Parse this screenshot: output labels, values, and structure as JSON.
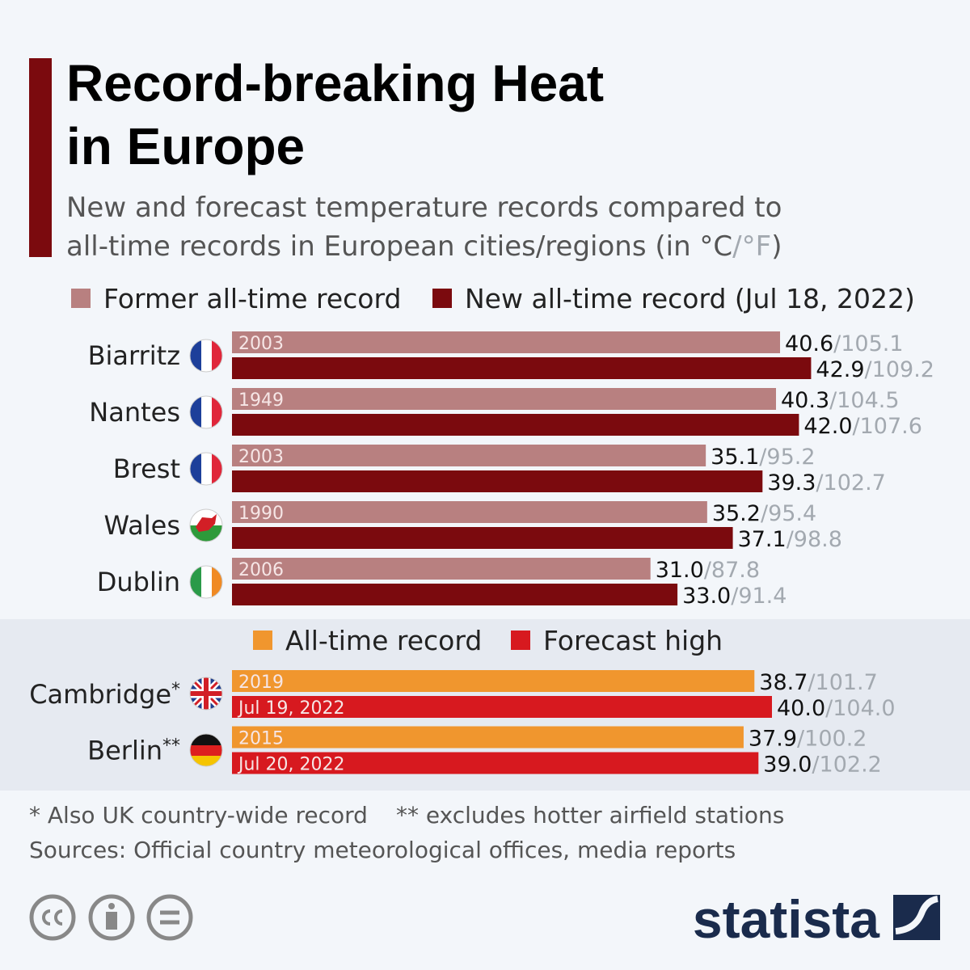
{
  "header": {
    "title_line1": "Record-breaking Heat",
    "title_line2": "in Europe",
    "subtitle_line1": "New and forecast temperature records compared to",
    "subtitle_line2": "all-time records in European cities/regions (in °C",
    "subtitle_f": "/°F",
    "subtitle_end": ")"
  },
  "value_separator": "/",
  "chart_data": [
    {
      "type": "bar",
      "orientation": "horizontal",
      "categories": [
        "Biarritz",
        "Nantes",
        "Brest",
        "Wales",
        "Dublin"
      ],
      "xlim": [
        0,
        50
      ],
      "series": [
        {
          "name": "Former all-time record",
          "color": "#b88080",
          "values": [
            40.6,
            40.3,
            35.1,
            35.2,
            31.0
          ],
          "value_labels": [
            "40.6",
            "40.3",
            "35.1",
            "35.2",
            "31.0"
          ],
          "fahrenheit_labels": [
            "105.1",
            "104.5",
            "95.2",
            "95.4",
            "87.8"
          ],
          "labels": [
            "2003",
            "1949",
            "2003",
            "1990",
            "2006"
          ]
        },
        {
          "name": "New all-time record (Jul 18, 2022)",
          "color": "#7b0a0e",
          "values": [
            42.9,
            42.0,
            39.3,
            37.1,
            33.0
          ],
          "value_labels": [
            "42.9",
            "42.0",
            "39.3",
            "37.1",
            "33.0"
          ],
          "fahrenheit_labels": [
            "109.2",
            "107.6",
            "102.7",
            "98.8",
            "91.4"
          ]
        }
      ]
    },
    {
      "type": "bar",
      "orientation": "horizontal",
      "categories": [
        "Cambridge",
        "Berlin"
      ],
      "category_notes": [
        "*",
        "**"
      ],
      "xlim": [
        0,
        50
      ],
      "series": [
        {
          "name": "All-time record",
          "color": "#f0962e",
          "values": [
            38.7,
            37.9
          ],
          "value_labels": [
            "38.7",
            "37.9"
          ],
          "fahrenheit_labels": [
            "101.7",
            "100.2"
          ],
          "labels": [
            "2019",
            "2015"
          ]
        },
        {
          "name": "Forecast high",
          "color": "#d7191f",
          "values": [
            40.0,
            39.0
          ],
          "value_labels": [
            "40.0",
            "39.0"
          ],
          "fahrenheit_labels": [
            "104.0",
            "102.2"
          ],
          "labels": [
            "Jul 19, 2022",
            "Jul 20, 2022"
          ]
        }
      ]
    }
  ],
  "footnotes": [
    "* Also UK country-wide record",
    "** excludes hotter airfield stations"
  ],
  "source": "Sources: Official country meteorological offices, media reports",
  "brand": "statista"
}
